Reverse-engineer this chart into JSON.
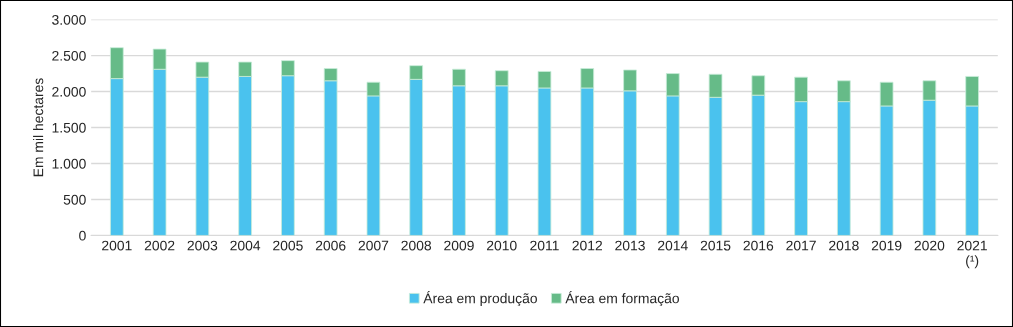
{
  "chart_data": {
    "type": "bar",
    "stacked": true,
    "ylabel": "Em mil hectares",
    "categories": [
      "2001",
      "2002",
      "2003",
      "2004",
      "2005",
      "2006",
      "2007",
      "2008",
      "2009",
      "2010",
      "2011",
      "2012",
      "2013",
      "2014",
      "2015",
      "2016",
      "2017",
      "2018",
      "2019",
      "2020",
      "2021\n(¹)"
    ],
    "series": [
      {
        "name": "Área em produção",
        "color": "#4ac2ee",
        "values": [
          2180,
          2310,
          2200,
          2210,
          2220,
          2150,
          1940,
          2170,
          2080,
          2080,
          2050,
          2050,
          2010,
          1940,
          1920,
          1950,
          1860,
          1860,
          1800,
          1880,
          1800
        ]
      },
      {
        "name": "Área em formação",
        "color": "#66bb88",
        "values": [
          430,
          280,
          210,
          200,
          210,
          170,
          190,
          190,
          230,
          210,
          230,
          270,
          290,
          310,
          320,
          270,
          340,
          290,
          330,
          270,
          410
        ]
      }
    ],
    "ylim": [
      0,
      3000
    ],
    "yticks": [
      {
        "value": 0,
        "label": "0"
      },
      {
        "value": 500,
        "label": "500"
      },
      {
        "value": 1000,
        "label": "1.000"
      },
      {
        "value": 1500,
        "label": "1.500"
      },
      {
        "value": 2000,
        "label": "2.000"
      },
      {
        "value": 2500,
        "label": "2.500"
      },
      {
        "value": 3000,
        "label": "3.000"
      }
    ],
    "grid": "y",
    "legend": "bottom"
  }
}
